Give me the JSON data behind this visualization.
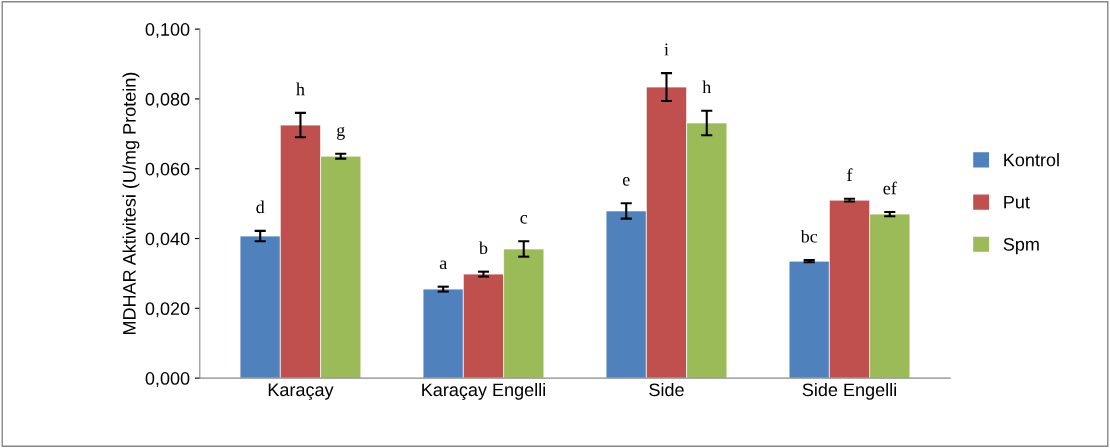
{
  "chart_data": {
    "type": "bar",
    "ylabel": "MDHAR Aktivitesi (U/mg Protein)",
    "categories": [
      "Karaçay",
      "Karaçay Engelli",
      "Side",
      "Side Engelli"
    ],
    "series": [
      {
        "name": "Kontrol",
        "color": "#4f81bd",
        "values": [
          0.0407,
          0.0255,
          0.0479,
          0.0335
        ],
        "errors": [
          0.0015,
          0.0007,
          0.0022,
          0.0003
        ],
        "value_labels": [
          "d",
          "a",
          "e",
          "bc"
        ]
      },
      {
        "name": "Put",
        "color": "#c0504d",
        "values": [
          0.0725,
          0.0298,
          0.0834,
          0.051
        ],
        "errors": [
          0.0035,
          0.0007,
          0.004,
          0.0004
        ],
        "value_labels": [
          "h",
          "b",
          "i",
          "f"
        ]
      },
      {
        "name": "Spm",
        "color": "#9bbb59",
        "values": [
          0.0636,
          0.037,
          0.0731,
          0.047
        ],
        "errors": [
          0.0007,
          0.0022,
          0.0035,
          0.0006
        ],
        "value_labels": [
          "g",
          "c",
          "h",
          "ef"
        ]
      }
    ],
    "ylim": [
      0,
      0.1
    ],
    "yticks": [
      {
        "value": 0,
        "label": "0,000"
      },
      {
        "value": 0.02,
        "label": "0,020"
      },
      {
        "value": 0.04,
        "label": "0,040"
      },
      {
        "value": 0.06,
        "label": "0,060"
      },
      {
        "value": 0.08,
        "label": "0,080"
      },
      {
        "value": 0.1,
        "label": "0,100"
      }
    ],
    "grid": false,
    "legend": "right"
  }
}
